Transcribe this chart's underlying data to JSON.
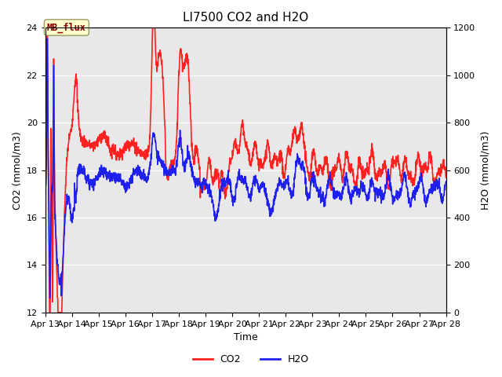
{
  "title": "LI7500 CO2 and H2O",
  "xlabel": "Time",
  "ylabel_left": "CO2 (mmol/m3)",
  "ylabel_right": "H2O (mmol/m3)",
  "ylim_left": [
    12,
    24
  ],
  "ylim_right": [
    0,
    1200
  ],
  "yticks_left": [
    12,
    14,
    16,
    18,
    20,
    22,
    24
  ],
  "yticks_right": [
    0,
    200,
    400,
    600,
    800,
    1000,
    1200
  ],
  "xtick_labels": [
    "Apr 13",
    "Apr 14",
    "Apr 15",
    "Apr 16",
    "Apr 17",
    "Apr 18",
    "Apr 19",
    "Apr 20",
    "Apr 21",
    "Apr 22",
    "Apr 23",
    "Apr 24",
    "Apr 25",
    "Apr 26",
    "Apr 27",
    "Apr 28"
  ],
  "co2_color": "#FF2020",
  "h2o_color": "#2020EE",
  "background_color": "#E8E8E8",
  "figure_background": "#FFFFFF",
  "legend_co2": "CO2",
  "legend_h2o": "H2O",
  "annotation_text": "MB_flux",
  "title_fontsize": 11,
  "axis_fontsize": 9,
  "tick_fontsize": 8,
  "legend_fontsize": 9,
  "line_width": 1.2
}
